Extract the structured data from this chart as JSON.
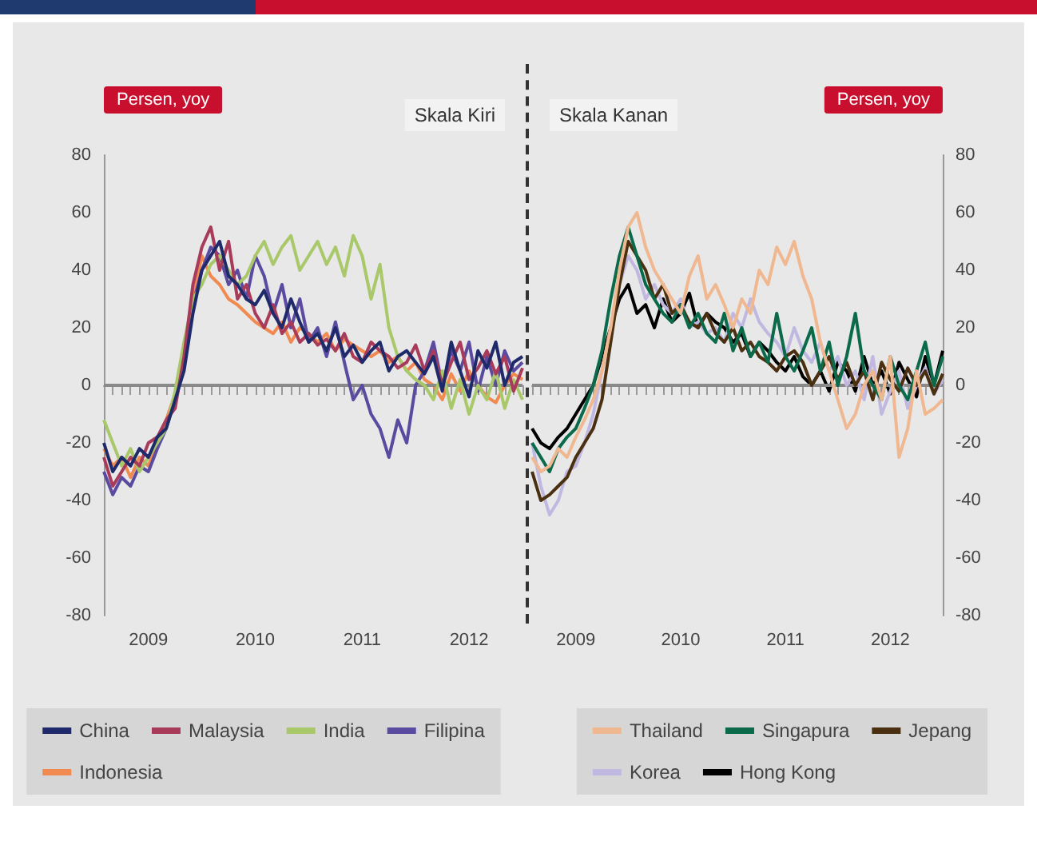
{
  "chart_data": [
    {
      "type": "line",
      "subtitle": "Skala Kiri",
      "ylabel": "Persen, yoy",
      "categories": [
        null,
        null,
        null,
        null,
        null,
        "2009",
        null,
        null,
        null,
        null,
        null,
        null,
        null,
        null,
        null,
        null,
        null,
        "2010",
        null,
        null,
        null,
        null,
        null,
        null,
        null,
        null,
        null,
        null,
        null,
        "2011",
        null,
        null,
        null,
        null,
        null,
        null,
        null,
        null,
        null,
        null,
        null,
        "2012",
        null,
        null,
        null,
        null,
        null,
        null
      ],
      "ylim": [
        -80,
        80
      ],
      "yticks": [
        -80,
        -60,
        -40,
        -20,
        0,
        20,
        40,
        60,
        80
      ],
      "grid": false,
      "legend": "bottom",
      "marker": "none",
      "line_style": "solid",
      "ref_lines": [
        {
          "axis": "y",
          "value": 0,
          "color": "#8a8a8a"
        }
      ],
      "series": [
        {
          "name": "China",
          "color": "#1f2a6b",
          "values": [
            -20,
            -30,
            -25,
            -28,
            -22,
            -25,
            -18,
            -15,
            -5,
            5,
            25,
            40,
            45,
            50,
            38,
            35,
            30,
            28,
            33,
            25,
            20,
            30,
            22,
            15,
            18,
            12,
            20,
            10,
            14,
            8,
            12,
            15,
            5,
            10,
            12,
            8,
            4,
            10,
            -2,
            15,
            5,
            -4,
            12,
            6,
            15,
            0,
            8,
            10
          ]
        },
        {
          "name": "Malaysia",
          "color": "#a83a5a",
          "values": [
            -25,
            -35,
            -30,
            -25,
            -28,
            -20,
            -18,
            -12,
            -8,
            10,
            35,
            48,
            55,
            40,
            50,
            30,
            35,
            25,
            20,
            28,
            18,
            22,
            15,
            18,
            14,
            16,
            12,
            18,
            10,
            8,
            15,
            12,
            10,
            6,
            8,
            14,
            5,
            12,
            0,
            8,
            15,
            2,
            6,
            12,
            4,
            10,
            -2,
            6
          ]
        },
        {
          "name": "India",
          "color": "#a8c86a",
          "values": [
            -12,
            -20,
            -28,
            -22,
            -30,
            -25,
            -20,
            -15,
            -2,
            15,
            30,
            35,
            42,
            45,
            40,
            35,
            38,
            45,
            50,
            42,
            48,
            52,
            40,
            45,
            50,
            42,
            48,
            38,
            52,
            45,
            30,
            42,
            20,
            10,
            5,
            2,
            0,
            -5,
            5,
            -8,
            2,
            -10,
            0,
            -5,
            5,
            -8,
            2,
            -5
          ]
        },
        {
          "name": "Filipina",
          "color": "#5a4aa0",
          "values": [
            -30,
            -38,
            -32,
            -35,
            -28,
            -30,
            -22,
            -15,
            -5,
            8,
            28,
            40,
            48,
            45,
            35,
            40,
            30,
            45,
            38,
            25,
            35,
            20,
            30,
            15,
            20,
            10,
            22,
            8,
            -5,
            0,
            -10,
            -15,
            -25,
            -12,
            -20,
            0,
            5,
            15,
            0,
            12,
            5,
            15,
            -2,
            10,
            0,
            12,
            5,
            8
          ]
        },
        {
          "name": "Indonesia",
          "color": "#f08a50",
          "values": [
            -22,
            -28,
            -25,
            -32,
            -25,
            -28,
            -20,
            -12,
            -3,
            12,
            30,
            45,
            38,
            35,
            30,
            28,
            25,
            22,
            20,
            18,
            22,
            15,
            20,
            18,
            15,
            18,
            12,
            16,
            14,
            12,
            10,
            12,
            8,
            10,
            5,
            8,
            2,
            0,
            -5,
            4,
            -2,
            5,
            0,
            -4,
            -6,
            0,
            4,
            2
          ]
        }
      ]
    },
    {
      "type": "line",
      "subtitle": "Skala Kanan",
      "ylabel": "Persen, yoy",
      "categories": [
        null,
        null,
        null,
        null,
        null,
        "2009",
        null,
        null,
        null,
        null,
        null,
        null,
        null,
        null,
        null,
        null,
        null,
        "2010",
        null,
        null,
        null,
        null,
        null,
        null,
        null,
        null,
        null,
        null,
        null,
        "2011",
        null,
        null,
        null,
        null,
        null,
        null,
        null,
        null,
        null,
        null,
        null,
        "2012",
        null,
        null,
        null,
        null,
        null,
        null
      ],
      "ylim": [
        -80,
        80
      ],
      "yticks": [
        -80,
        -60,
        -40,
        -20,
        0,
        20,
        40,
        60,
        80
      ],
      "grid": false,
      "legend": "bottom",
      "marker": "none",
      "line_style": "solid",
      "ref_lines": [
        {
          "axis": "y",
          "value": 0,
          "color": "#8a8a8a"
        }
      ],
      "series": [
        {
          "name": "Thailand",
          "color": "#f0b890",
          "values": [
            -25,
            -30,
            -28,
            -22,
            -25,
            -18,
            -12,
            -5,
            5,
            20,
            40,
            55,
            60,
            48,
            40,
            35,
            30,
            25,
            38,
            45,
            30,
            35,
            28,
            20,
            30,
            25,
            40,
            35,
            48,
            42,
            50,
            38,
            30,
            15,
            5,
            -5,
            -15,
            -10,
            0,
            5,
            -5,
            10,
            -25,
            -15,
            5,
            -10,
            -8,
            -5
          ]
        },
        {
          "name": "Singapura",
          "color": "#0a6a4a",
          "values": [
            -20,
            -25,
            -30,
            -22,
            -18,
            -15,
            -8,
            0,
            12,
            30,
            45,
            55,
            45,
            35,
            30,
            25,
            22,
            28,
            20,
            25,
            18,
            15,
            25,
            12,
            20,
            10,
            15,
            8,
            25,
            10,
            5,
            12,
            20,
            5,
            15,
            0,
            10,
            25,
            5,
            0,
            -5,
            10,
            0,
            -5,
            5,
            15,
            0,
            10
          ]
        },
        {
          "name": "Jepang",
          "color": "#4a3010",
          "values": [
            -30,
            -40,
            -38,
            -35,
            -32,
            -25,
            -20,
            -15,
            -5,
            15,
            35,
            50,
            45,
            40,
            30,
            35,
            25,
            28,
            22,
            20,
            25,
            18,
            15,
            20,
            12,
            15,
            10,
            8,
            5,
            10,
            12,
            8,
            0,
            5,
            10,
            2,
            8,
            0,
            5,
            -5,
            8,
            2,
            -2,
            6,
            0,
            5,
            -3,
            4
          ]
        },
        {
          "name": "Korea",
          "color": "#c0b8e0",
          "values": [
            -20,
            -35,
            -45,
            -40,
            -30,
            -28,
            -20,
            -10,
            5,
            20,
            35,
            45,
            40,
            30,
            35,
            28,
            25,
            30,
            20,
            22,
            18,
            20,
            15,
            25,
            20,
            30,
            22,
            18,
            15,
            10,
            20,
            12,
            8,
            15,
            5,
            10,
            0,
            5,
            -5,
            10,
            -10,
            -2,
            5,
            -8,
            0,
            6,
            -3,
            2
          ]
        },
        {
          "name": "Hong Kong",
          "color": "#000000",
          "values": [
            -15,
            -20,
            -22,
            -18,
            -15,
            -10,
            -5,
            0,
            10,
            20,
            30,
            35,
            25,
            28,
            20,
            30,
            22,
            25,
            32,
            20,
            25,
            22,
            20,
            15,
            18,
            10,
            15,
            12,
            8,
            5,
            10,
            3,
            0,
            5,
            -2,
            8,
            5,
            -2,
            10,
            0,
            5,
            -3,
            8,
            2,
            -4,
            10,
            0,
            12
          ]
        }
      ]
    }
  ]
}
